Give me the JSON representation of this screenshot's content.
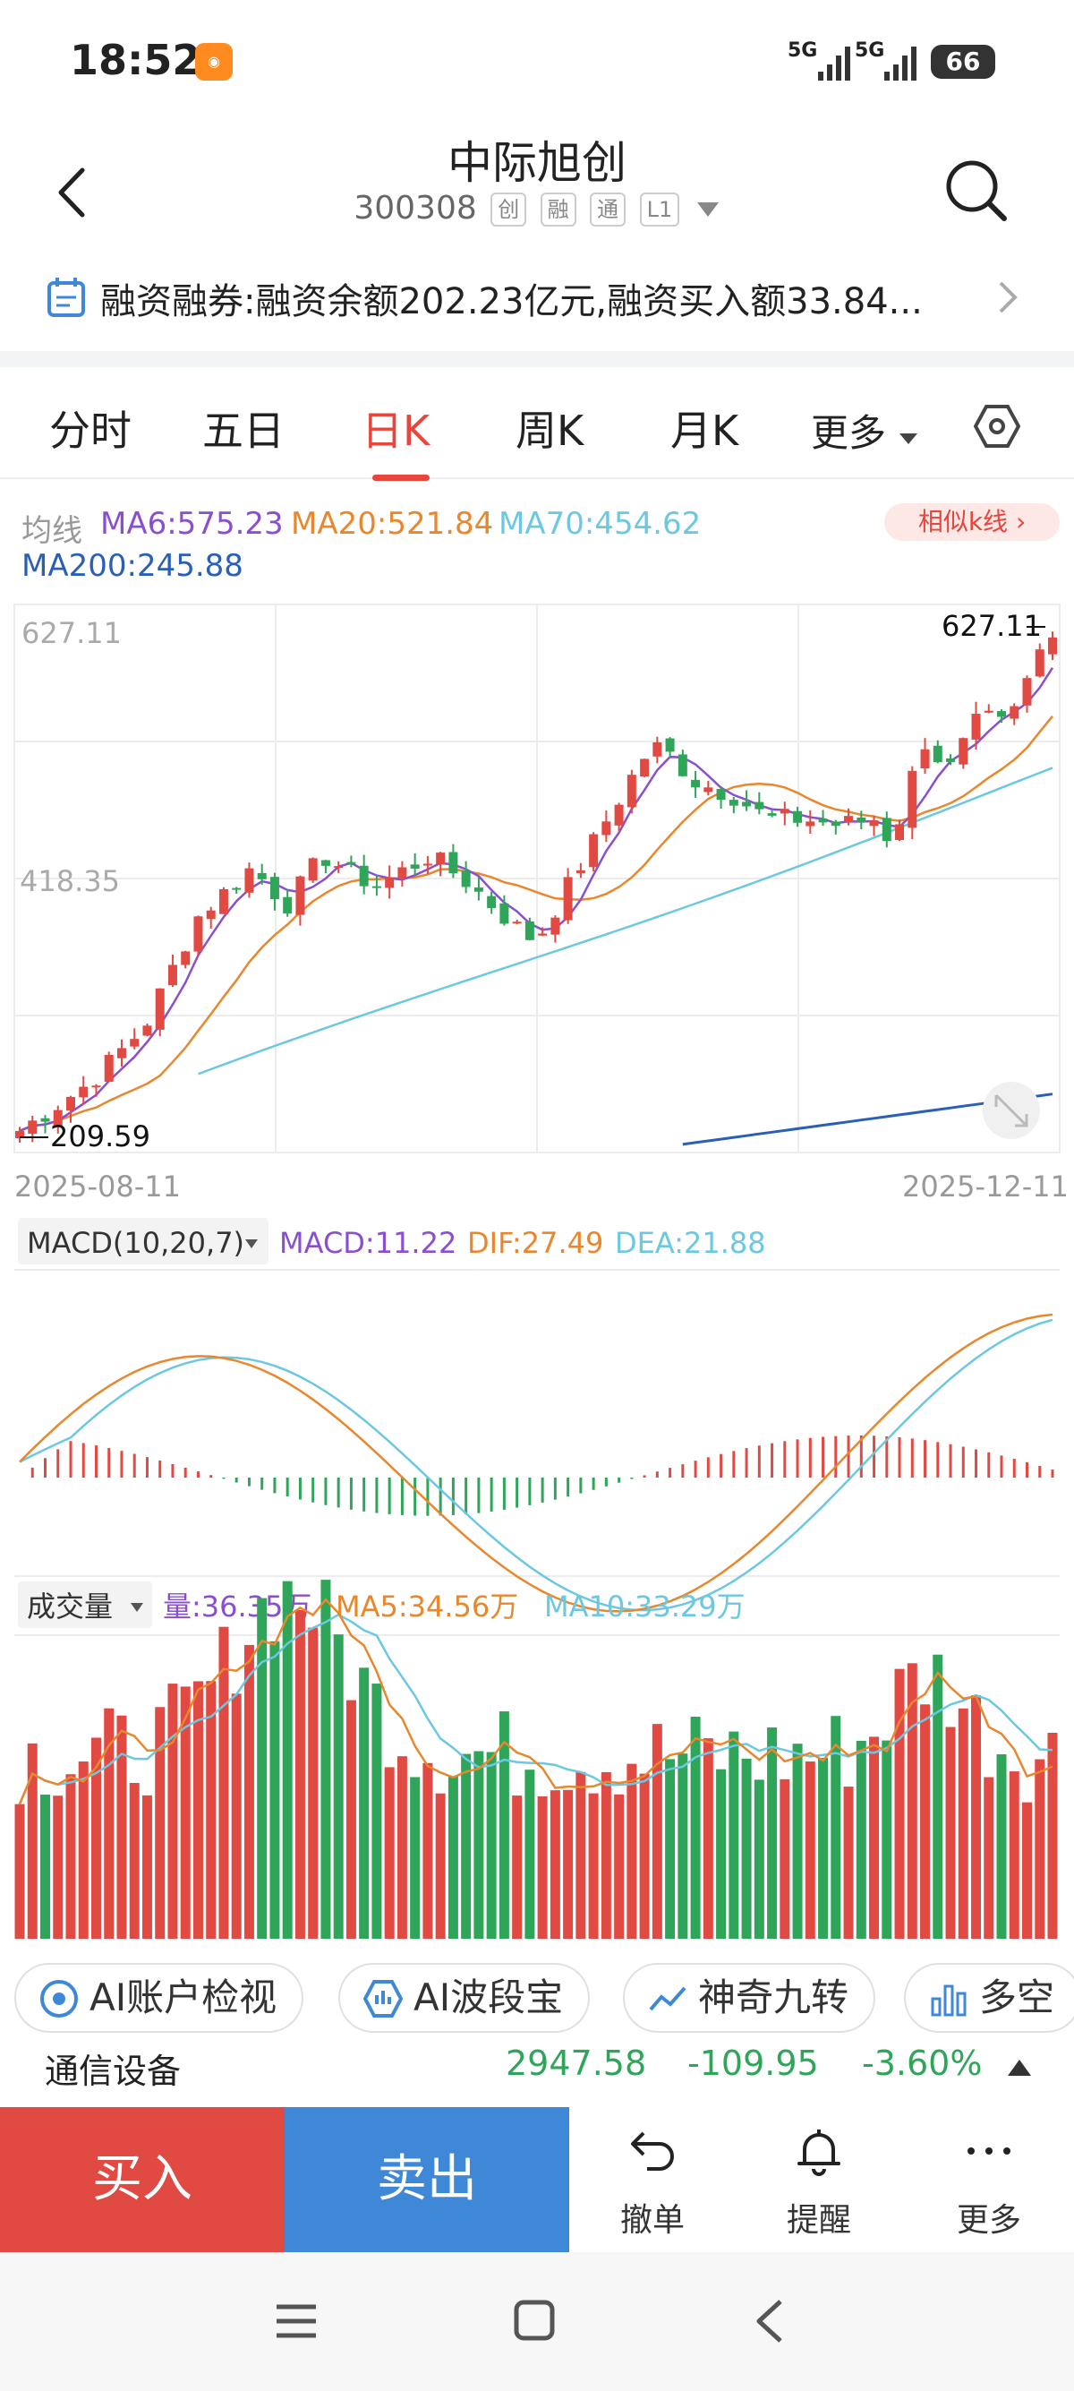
{
  "status_bar": {
    "time": "18:52",
    "signal1": "5G",
    "signal2": "5G",
    "battery": "66"
  },
  "header": {
    "stock_name": "中际旭创",
    "stock_code": "300308",
    "tags": [
      "创",
      "融",
      "通",
      "L1"
    ]
  },
  "margin_notice": {
    "text": "融资融券:融资余额202.23亿元,融资买入额33.84..."
  },
  "tabs": [
    {
      "label": "分时"
    },
    {
      "label": "五日"
    },
    {
      "label": "日K"
    },
    {
      "label": "周K"
    },
    {
      "label": "月K"
    },
    {
      "label": "更多"
    }
  ],
  "ma_legend": {
    "title": "均线",
    "ma6": "MA6:575.23",
    "ma20": "MA20:521.84",
    "ma70": "MA70:454.62",
    "ma200": "MA200:245.88",
    "similar_k": "相似k线"
  },
  "kline": {
    "price_high": "627.11",
    "price_mid": "418.35",
    "price_low": "209.59",
    "marker_high": "627.11",
    "marker_low": "209.59",
    "date_start": "2025-08-11",
    "date_end": "2025-12-11"
  },
  "macd": {
    "selector": "MACD(10,20,7)",
    "macd": "MACD:11.22",
    "dif": "DIF:27.49",
    "dea": "DEA:21.88"
  },
  "volume": {
    "selector": "成交量",
    "vol": "量:36.35万",
    "ma5": "MA5:34.56万",
    "ma10": "MA10:33.29万"
  },
  "ai_tools": [
    {
      "label": "AI账户检视"
    },
    {
      "label": "AI波段宝"
    },
    {
      "label": "神奇九转"
    },
    {
      "label": "多空"
    }
  ],
  "sector": {
    "name": "通信设备",
    "price": "2947.58",
    "change": "-109.95",
    "pct": "-3.60%"
  },
  "actions": {
    "buy": "买入",
    "sell": "卖出",
    "cancel": "撤单",
    "alert": "提醒",
    "more": "更多"
  },
  "colors": {
    "up": "#e04a43",
    "down": "#2fa55a",
    "ma6": "#8a4fd0",
    "ma20": "#e8872d",
    "ma70": "#6cc8e0",
    "ma200": "#2a5fb8"
  }
}
